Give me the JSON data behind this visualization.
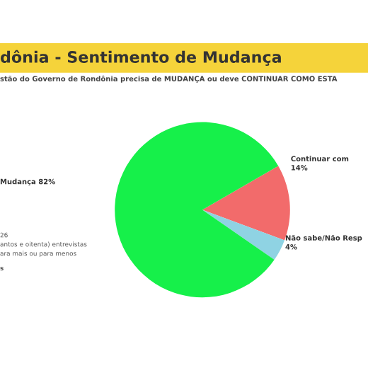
{
  "chart_data": {
    "type": "pie",
    "title": "dônia - Sentimento de Mudança",
    "subtitle": "stão do Governo de Rondônia precisa de MUDANÇA ou deve CONTINUAR COMO ESTA",
    "categories": [
      "Continuar com",
      "Não sabe/Não Resp",
      "Mudança"
    ],
    "values": [
      14,
      4,
      82
    ],
    "value_labels": [
      "14%",
      "4%",
      "82%"
    ],
    "colors": [
      "#f26b6b",
      "#8fd3e3",
      "#16f04a"
    ],
    "annotations": [
      "26",
      "antos e oitenta) entrevistas",
      "ara mais ou para menos",
      "s"
    ]
  }
}
